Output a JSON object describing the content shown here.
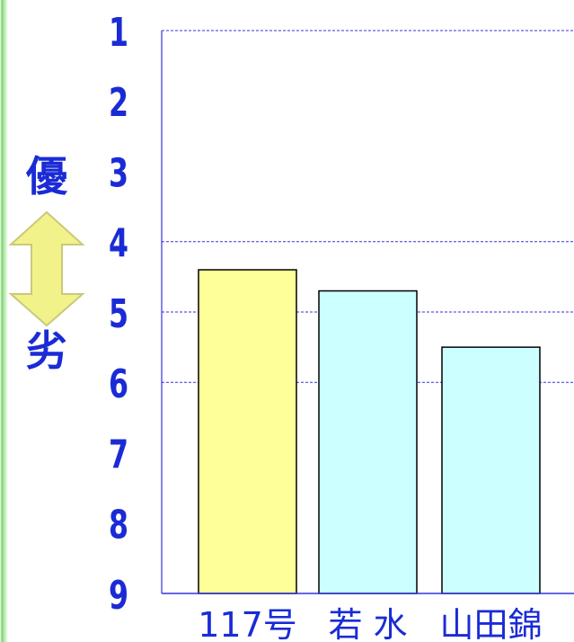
{
  "chart_data": {
    "type": "bar",
    "categories": [
      "117号",
      "若 水",
      "山田錦"
    ],
    "values": [
      4.4,
      4.7,
      5.5
    ],
    "ylim": [
      1,
      9
    ],
    "yticks": [
      "1",
      "2",
      "3",
      "4",
      "5",
      "6",
      "7",
      "8",
      "9"
    ],
    "y_inverted": true,
    "gridlines": [
      1,
      4,
      5,
      6
    ],
    "title": "",
    "xlabel": "",
    "ylabel": "",
    "side_labels": {
      "top": "優",
      "bottom": "劣"
    },
    "bar_colors": [
      "#ffff99",
      "#ccffff",
      "#ccffff"
    ],
    "axis_color": "#3333dd",
    "text_color": "#1a2bd6"
  }
}
